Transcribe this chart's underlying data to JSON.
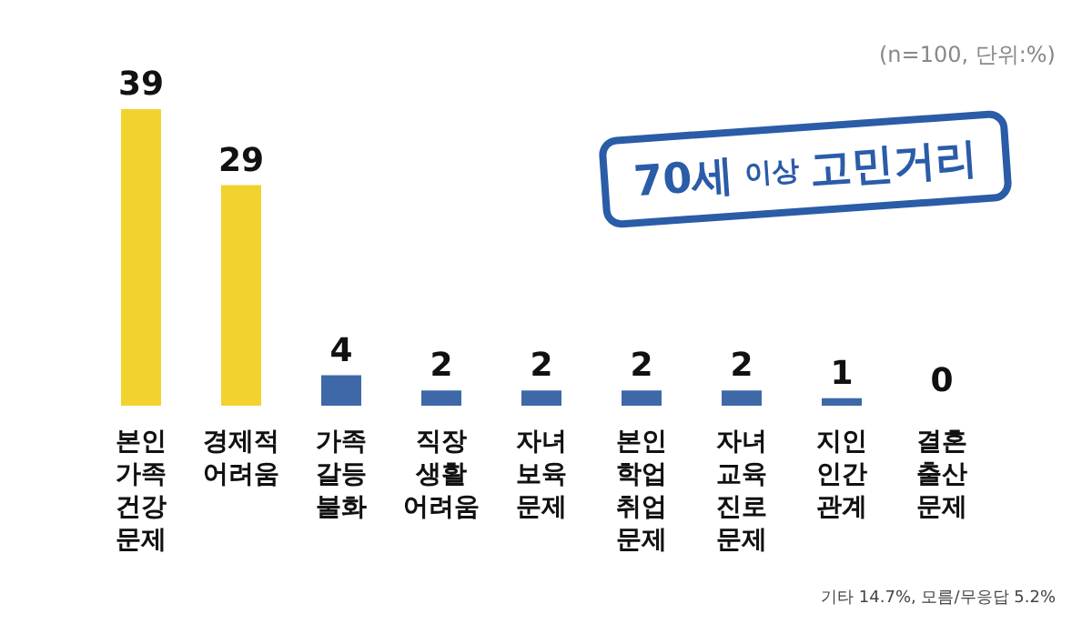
{
  "chart_data": {
    "type": "bar",
    "title": "70세 이상 고민거리",
    "subtitle": "(n=100, 단위:%)",
    "categories": [
      "본인\n가족\n건강\n문제",
      "경제적\n어려움",
      "가족\n갈등\n불화",
      "직장\n생활\n어려움",
      "자녀\n보육\n문제",
      "본인\n학업\n취업\n문제",
      "자녀\n교육\n진로\n문제",
      "지인\n인간\n관계",
      "결혼\n출산\n문제"
    ],
    "values": [
      39,
      29,
      4,
      2,
      2,
      2,
      2,
      1,
      0
    ],
    "colors": [
      "#f2d22e",
      "#f2d22e",
      "#3f68a8",
      "#3f68a8",
      "#3f68a8",
      "#3f68a8",
      "#3f68a8",
      "#3f68a8",
      "#3f68a8"
    ],
    "data_labels": true,
    "annotations": [
      "기타 14.7%, 모름/무응답 5.2%"
    ]
  }
}
